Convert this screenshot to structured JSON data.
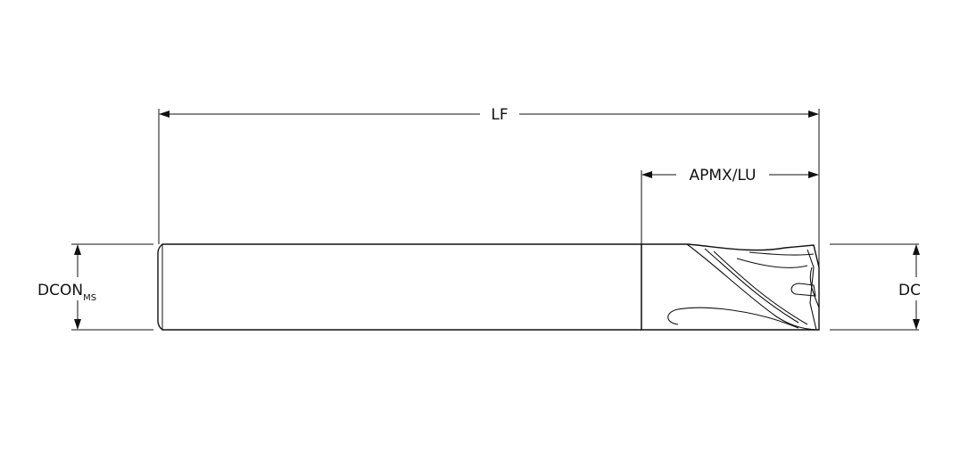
{
  "dimensions": {
    "lf": "LF",
    "apmx_lu": "APMX/LU",
    "dcon": "DCON",
    "dcon_sub": "MS",
    "dc": "DC"
  },
  "colors": {
    "line": "#111111",
    "background": "#ffffff"
  }
}
